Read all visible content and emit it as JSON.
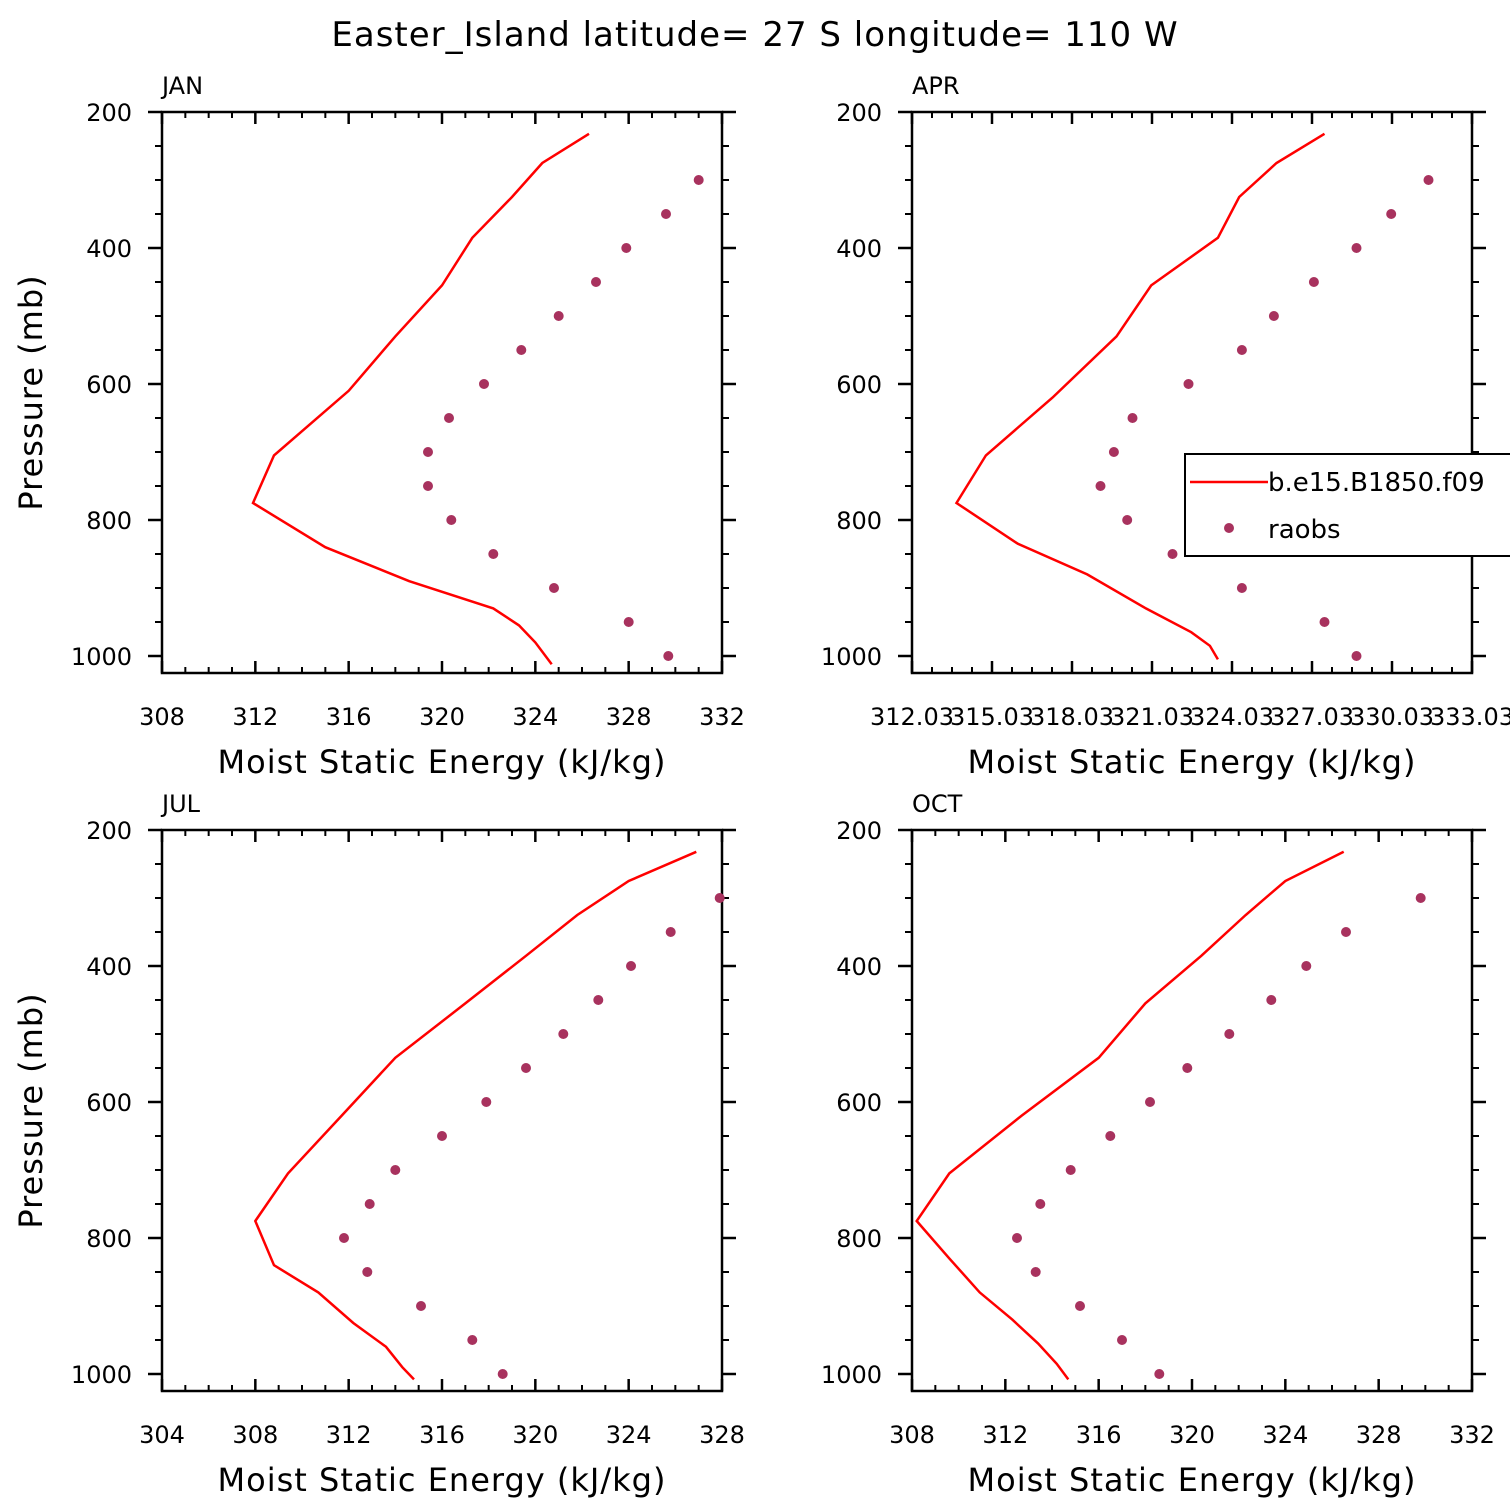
{
  "title": "Easter_Island  latitude= 27 S longitude= 110 W",
  "colors": {
    "model": "#ff0000",
    "obs": "#a8325e",
    "axis": "#000000"
  },
  "legend": {
    "model_label": "b.e15.B1850.f09",
    "obs_label": "raobs"
  },
  "chart_data": [
    {
      "type": "line",
      "panel": "JAN",
      "xlabel": "Moist Static Energy (kJ/kg)",
      "ylabel": "Pressure (mb)",
      "xlim": [
        308,
        332
      ],
      "ylim": [
        1000,
        200
      ],
      "xticks": [
        "308",
        "312",
        "316",
        "320",
        "324",
        "328",
        "332"
      ],
      "yticks": [
        "200",
        "400",
        "600",
        "800",
        "1000"
      ],
      "series": [
        {
          "name": "b.e15.B1850.f09",
          "kind": "line",
          "x": [
            326.3,
            324.3,
            323.0,
            321.3,
            320.0,
            318.0,
            316.0,
            312.8,
            311.9,
            315.0,
            318.6,
            322.2,
            323.3,
            324.0,
            324.7
          ],
          "y": [
            232,
            275,
            325,
            385,
            455,
            530,
            610,
            705,
            775,
            840,
            890,
            930,
            955,
            980,
            1012
          ]
        },
        {
          "name": "raobs",
          "kind": "scatter",
          "x": [
            331.0,
            329.6,
            327.9,
            326.6,
            325.0,
            323.4,
            321.8,
            320.3,
            319.4,
            319.4,
            320.4,
            322.2,
            324.8,
            328.0,
            329.7
          ],
          "y": [
            300,
            350,
            400,
            450,
            500,
            550,
            600,
            650,
            700,
            750,
            800,
            850,
            900,
            950,
            1000
          ]
        }
      ]
    },
    {
      "type": "line",
      "panel": "APR",
      "xlabel": "Moist Static Energy (kJ/kg)",
      "ylabel": "",
      "xlim": [
        312.03,
        333.03
      ],
      "ylim": [
        1000,
        200
      ],
      "xticks": [
        "312.03",
        "315.03",
        "318.03",
        "321.03",
        "324.03",
        "327.03",
        "330.03",
        "333.03"
      ],
      "yticks": [
        "200",
        "400",
        "600",
        "800",
        "1000"
      ],
      "series": [
        {
          "name": "b.e15.B1850.f09",
          "kind": "line",
          "x": [
            327.5,
            325.7,
            324.3,
            323.5,
            321.0,
            319.7,
            317.3,
            314.8,
            313.7,
            316.0,
            318.6,
            320.8,
            322.5,
            323.2,
            323.5
          ],
          "y": [
            232,
            275,
            325,
            385,
            455,
            530,
            620,
            705,
            775,
            835,
            880,
            930,
            965,
            985,
            1005
          ]
        },
        {
          "name": "raobs",
          "kind": "scatter",
          "x": [
            331.4,
            330.0,
            328.7,
            327.1,
            325.6,
            324.4,
            322.4,
            320.3,
            319.6,
            319.1,
            320.1,
            321.8,
            324.4,
            327.5,
            328.7
          ],
          "y": [
            300,
            350,
            400,
            450,
            500,
            550,
            600,
            650,
            700,
            750,
            800,
            850,
            900,
            950,
            1000
          ]
        }
      ]
    },
    {
      "type": "line",
      "panel": "JUL",
      "xlabel": "Moist Static Energy (kJ/kg)",
      "ylabel": "Pressure (mb)",
      "xlim": [
        304,
        328
      ],
      "ylim": [
        1000,
        200
      ],
      "xticks": [
        "304",
        "308",
        "312",
        "316",
        "320",
        "324",
        "328"
      ],
      "yticks": [
        "200",
        "400",
        "600",
        "800",
        "1000"
      ],
      "series": [
        {
          "name": "b.e15.B1850.f09",
          "kind": "line",
          "x": [
            326.9,
            324.0,
            321.8,
            319.6,
            317.0,
            314.0,
            311.7,
            309.4,
            308.0,
            308.8,
            310.7,
            312.2,
            313.6,
            314.3,
            314.8
          ],
          "y": [
            232,
            275,
            325,
            385,
            455,
            535,
            620,
            705,
            775,
            840,
            880,
            925,
            960,
            990,
            1008
          ]
        },
        {
          "name": "raobs",
          "kind": "scatter",
          "x": [
            327.9,
            325.8,
            324.1,
            322.7,
            321.2,
            319.6,
            317.9,
            316.0,
            314.0,
            312.9,
            311.8,
            312.8,
            315.1,
            317.3,
            318.6
          ],
          "y": [
            300,
            350,
            400,
            450,
            500,
            550,
            600,
            650,
            700,
            750,
            800,
            850,
            900,
            950,
            1000
          ]
        }
      ]
    },
    {
      "type": "line",
      "panel": "OCT",
      "xlabel": "Moist Static Energy (kJ/kg)",
      "ylabel": "",
      "xlim": [
        308,
        332
      ],
      "ylim": [
        1000,
        200
      ],
      "xticks": [
        "308",
        "312",
        "316",
        "320",
        "324",
        "328",
        "332"
      ],
      "yticks": [
        "200",
        "400",
        "600",
        "800",
        "1000"
      ],
      "series": [
        {
          "name": "b.e15.B1850.f09",
          "kind": "line",
          "x": [
            326.5,
            324.0,
            322.3,
            320.4,
            318.0,
            316.0,
            312.7,
            309.6,
            308.2,
            309.6,
            310.9,
            312.3,
            313.4,
            314.2,
            314.7
          ],
          "y": [
            232,
            275,
            325,
            385,
            455,
            535,
            620,
            705,
            775,
            830,
            880,
            920,
            955,
            985,
            1008
          ]
        },
        {
          "name": "raobs",
          "kind": "scatter",
          "x": [
            329.8,
            326.6,
            324.9,
            323.4,
            321.6,
            319.8,
            318.2,
            316.5,
            314.8,
            313.5,
            312.5,
            313.3,
            315.2,
            317.0,
            318.6
          ],
          "y": [
            300,
            350,
            400,
            450,
            500,
            550,
            600,
            650,
            700,
            750,
            800,
            850,
            900,
            950,
            1000
          ]
        }
      ]
    }
  ]
}
